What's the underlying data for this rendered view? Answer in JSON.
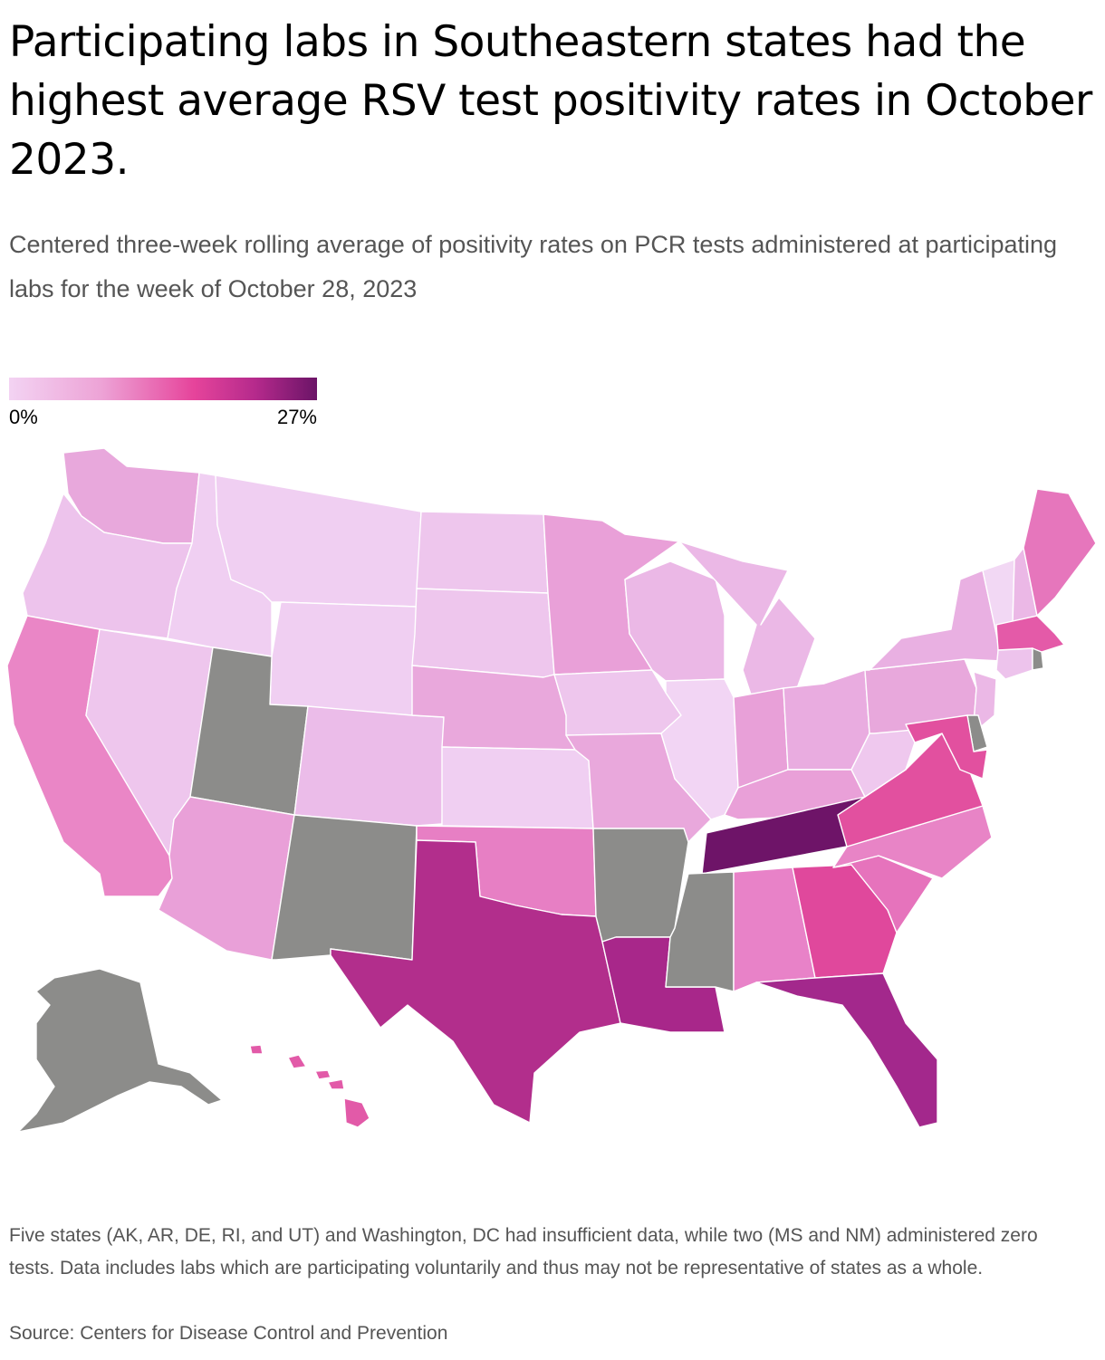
{
  "title": "Participating labs in Southeastern states had the highest average RSV test positivity rates in October 2023.",
  "subtitle": "Centered three-week rolling average of positivity rates on PCR tests administered at participating labs for the week of October 28, 2023",
  "legend": {
    "min_label": "0%",
    "max_label": "27%",
    "gradient_colors": [
      "#f3d3f3",
      "#eda3d6",
      "#e6449b",
      "#b52a8c",
      "#6b1467"
    ]
  },
  "colors": {
    "no_data": "#8c8c8a",
    "border": "#ffffff",
    "text_secondary": "#555555"
  },
  "states": {
    "WA": "#e8a8dc",
    "OR": "#edc3ec",
    "CA": "#ea86c6",
    "NV": "#eec6ed",
    "ID": "#f0cff2",
    "MT": "#f0cff2",
    "WY": "#f0cff2",
    "UT": "#8c8c8a",
    "AZ": "#e9a0d8",
    "CO": "#ebbce9",
    "NM": "#8c8c8a",
    "ND": "#eec6ed",
    "SD": "#eec6ed",
    "NE": "#e9a8dc",
    "KS": "#f0cff2",
    "OK": "#e77fc4",
    "TX": "#b22e8c",
    "MN": "#e9a0d8",
    "IA": "#eec6ed",
    "MO": "#e9a8dc",
    "AR": "#8c8c8a",
    "LA": "#a8278a",
    "WI": "#ebb8e6",
    "IL": "#f2d5f4",
    "MI": "#ebb8e6",
    "IN": "#e8a0d8",
    "OH": "#e9ace0",
    "KY": "#e9a0d8",
    "TN": "#6e1468",
    "MS": "#8c8c8a",
    "AL": "#e882c8",
    "GA": "#e0489c",
    "FL": "#a3288c",
    "SC": "#e673bc",
    "NC": "#e884c6",
    "VA": "#e2509f",
    "WV": "#efc8ee",
    "PA": "#e8a8dc",
    "NY": "#e9b0e2",
    "VT": "#f2d8f4",
    "NH": "#ebb8e6",
    "ME": "#e676bc",
    "MA": "#e45aa8",
    "CT": "#edc3ec",
    "NJ": "#ebb8e6",
    "MD": "#e2509f",
    "DE": "#8c8c8a",
    "RI": "#8c8c8a",
    "AK": "#8c8c8a",
    "HI": "#e25aa8"
  },
  "footnote": "Five states (AK, AR, DE, RI, and UT) and Washington, DC had insufficient data, while two (MS and NM) administered zero tests. Data includes labs which are participating voluntarily and thus may not be representative of states as a whole.",
  "source": "Source: Centers for Disease Control and Prevention"
}
